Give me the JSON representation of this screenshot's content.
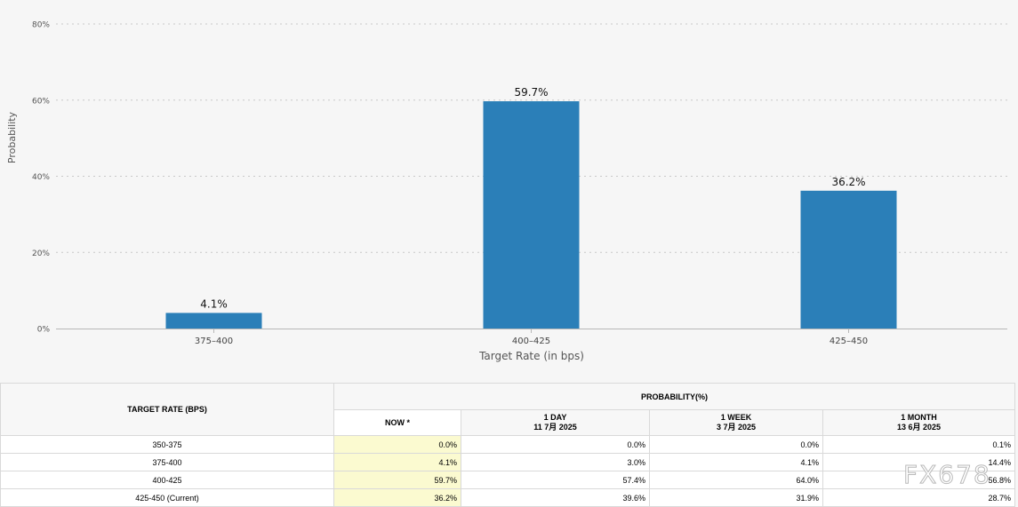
{
  "chart_data": {
    "type": "bar",
    "xlabel": "Target Rate (in bps)",
    "ylabel": "Probability",
    "ylim": [
      0,
      85
    ],
    "yticks": [
      "0%",
      "20%",
      "40%",
      "60%",
      "80%"
    ],
    "ytick_values": [
      0,
      20,
      40,
      60,
      80
    ],
    "grid": true,
    "categories": [
      "375-400",
      "400-425",
      "425-450"
    ],
    "values": [
      4.1,
      59.7,
      36.2
    ],
    "data_labels": [
      "4.1%",
      "59.7%",
      "36.2%"
    ],
    "bar_color": "#2b7fb8"
  },
  "table": {
    "rate_header": "TARGET RATE (BPS)",
    "prob_header": "PROBABILITY(%)",
    "columns": [
      {
        "label": "NOW *",
        "date": ""
      },
      {
        "label": "1 DAY",
        "date": "11 7月 2025"
      },
      {
        "label": "1 WEEK",
        "date": "3 7月 2025"
      },
      {
        "label": "1 MONTH",
        "date": "13 6月 2025"
      }
    ],
    "rows": [
      {
        "rate": "350-375",
        "values": [
          "0.0%",
          "0.0%",
          "0.0%",
          "0.1%"
        ]
      },
      {
        "rate": "375-400",
        "values": [
          "4.1%",
          "3.0%",
          "4.1%",
          "14.4%"
        ]
      },
      {
        "rate": "400-425",
        "values": [
          "59.7%",
          "57.4%",
          "64.0%",
          "56.8%"
        ]
      },
      {
        "rate": "425-450 (Current)",
        "values": [
          "36.2%",
          "39.6%",
          "31.9%",
          "28.7%"
        ]
      }
    ]
  },
  "watermark": "FX678"
}
